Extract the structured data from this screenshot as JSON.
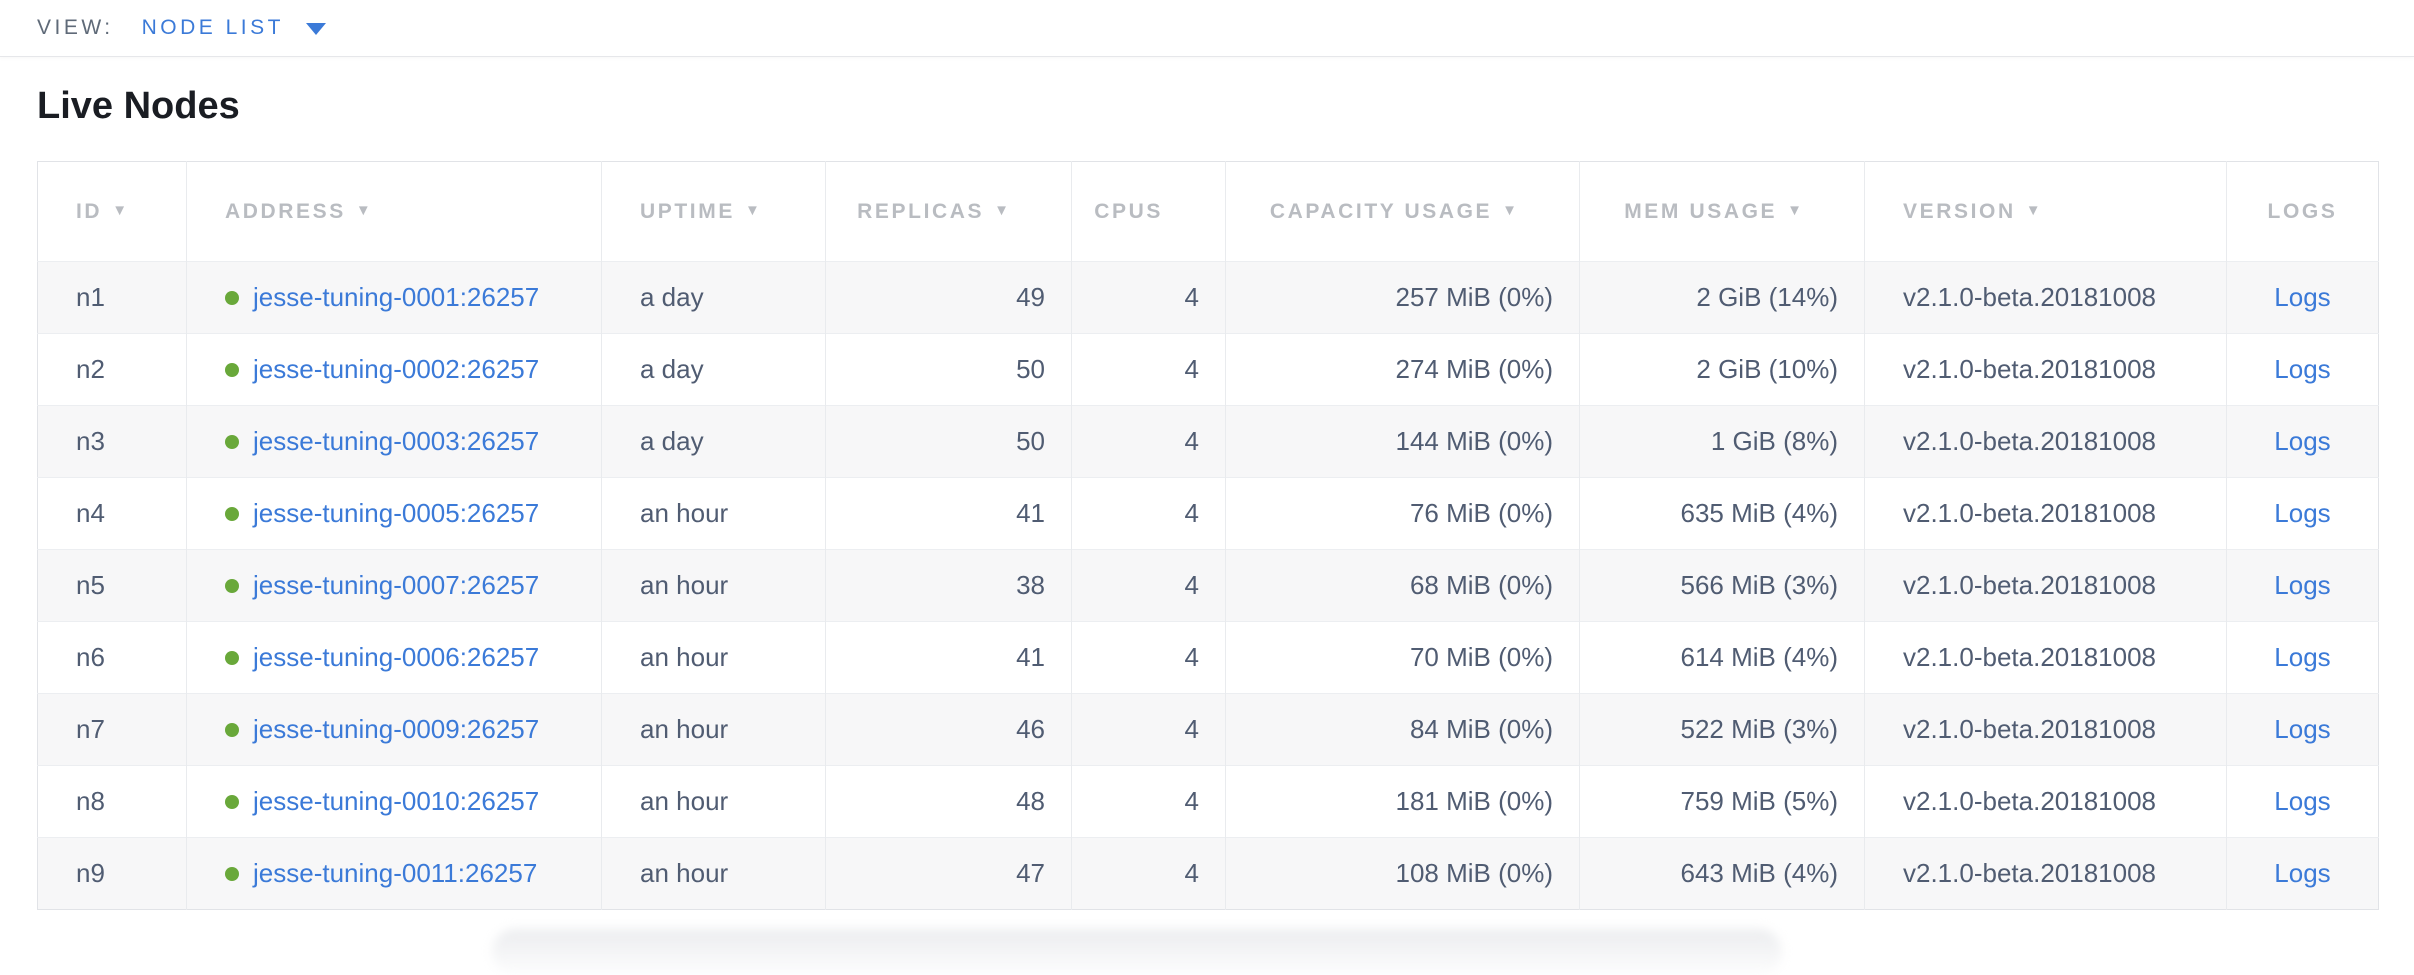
{
  "toolbar": {
    "view_label": "VIEW:",
    "selected_view": "NODE LIST"
  },
  "page": {
    "title": "Live Nodes"
  },
  "icons": {
    "sort_desc": "▼"
  },
  "colors": {
    "link_blue": "#3b7ad8",
    "status_green": "#69a83a",
    "header_gray": "#b9bcc1",
    "cell_text": "#505c72",
    "title_text": "#1a1d23",
    "view_label_gray": "#5f6a78",
    "row_alt": "#f7f7f8"
  },
  "table": {
    "columns": [
      {
        "key": "id",
        "label": "ID",
        "sortable": true
      },
      {
        "key": "address",
        "label": "ADDRESS",
        "sortable": true
      },
      {
        "key": "uptime",
        "label": "UPTIME",
        "sortable": true
      },
      {
        "key": "replicas",
        "label": "REPLICAS",
        "sortable": true
      },
      {
        "key": "cpus",
        "label": "CPUS",
        "sortable": false
      },
      {
        "key": "capacity",
        "label": "CAPACITY USAGE",
        "sortable": true
      },
      {
        "key": "mem",
        "label": "MEM USAGE",
        "sortable": true
      },
      {
        "key": "version",
        "label": "VERSION",
        "sortable": true
      },
      {
        "key": "logs",
        "label": "LOGS",
        "sortable": false
      }
    ],
    "rows": [
      {
        "id": "n1",
        "address": "jesse-tuning-0001:26257",
        "uptime": "a day",
        "replicas": 49,
        "cpus": 4,
        "capacity": "257 MiB (0%)",
        "mem": "2 GiB (14%)",
        "version": "v2.1.0-beta.20181008",
        "logs": "Logs"
      },
      {
        "id": "n2",
        "address": "jesse-tuning-0002:26257",
        "uptime": "a day",
        "replicas": 50,
        "cpus": 4,
        "capacity": "274 MiB (0%)",
        "mem": "2 GiB (10%)",
        "version": "v2.1.0-beta.20181008",
        "logs": "Logs"
      },
      {
        "id": "n3",
        "address": "jesse-tuning-0003:26257",
        "uptime": "a day",
        "replicas": 50,
        "cpus": 4,
        "capacity": "144 MiB (0%)",
        "mem": "1 GiB (8%)",
        "version": "v2.1.0-beta.20181008",
        "logs": "Logs"
      },
      {
        "id": "n4",
        "address": "jesse-tuning-0005:26257",
        "uptime": "an hour",
        "replicas": 41,
        "cpus": 4,
        "capacity": "76 MiB (0%)",
        "mem": "635 MiB (4%)",
        "version": "v2.1.0-beta.20181008",
        "logs": "Logs"
      },
      {
        "id": "n5",
        "address": "jesse-tuning-0007:26257",
        "uptime": "an hour",
        "replicas": 38,
        "cpus": 4,
        "capacity": "68 MiB (0%)",
        "mem": "566 MiB (3%)",
        "version": "v2.1.0-beta.20181008",
        "logs": "Logs"
      },
      {
        "id": "n6",
        "address": "jesse-tuning-0006:26257",
        "uptime": "an hour",
        "replicas": 41,
        "cpus": 4,
        "capacity": "70 MiB (0%)",
        "mem": "614 MiB (4%)",
        "version": "v2.1.0-beta.20181008",
        "logs": "Logs"
      },
      {
        "id": "n7",
        "address": "jesse-tuning-0009:26257",
        "uptime": "an hour",
        "replicas": 46,
        "cpus": 4,
        "capacity": "84 MiB (0%)",
        "mem": "522 MiB (3%)",
        "version": "v2.1.0-beta.20181008",
        "logs": "Logs"
      },
      {
        "id": "n8",
        "address": "jesse-tuning-0010:26257",
        "uptime": "an hour",
        "replicas": 48,
        "cpus": 4,
        "capacity": "181 MiB (0%)",
        "mem": "759 MiB (5%)",
        "version": "v2.1.0-beta.20181008",
        "logs": "Logs"
      },
      {
        "id": "n9",
        "address": "jesse-tuning-0011:26257",
        "uptime": "an hour",
        "replicas": 47,
        "cpus": 4,
        "capacity": "108 MiB (0%)",
        "mem": "643 MiB (4%)",
        "version": "v2.1.0-beta.20181008",
        "logs": "Logs"
      }
    ]
  }
}
